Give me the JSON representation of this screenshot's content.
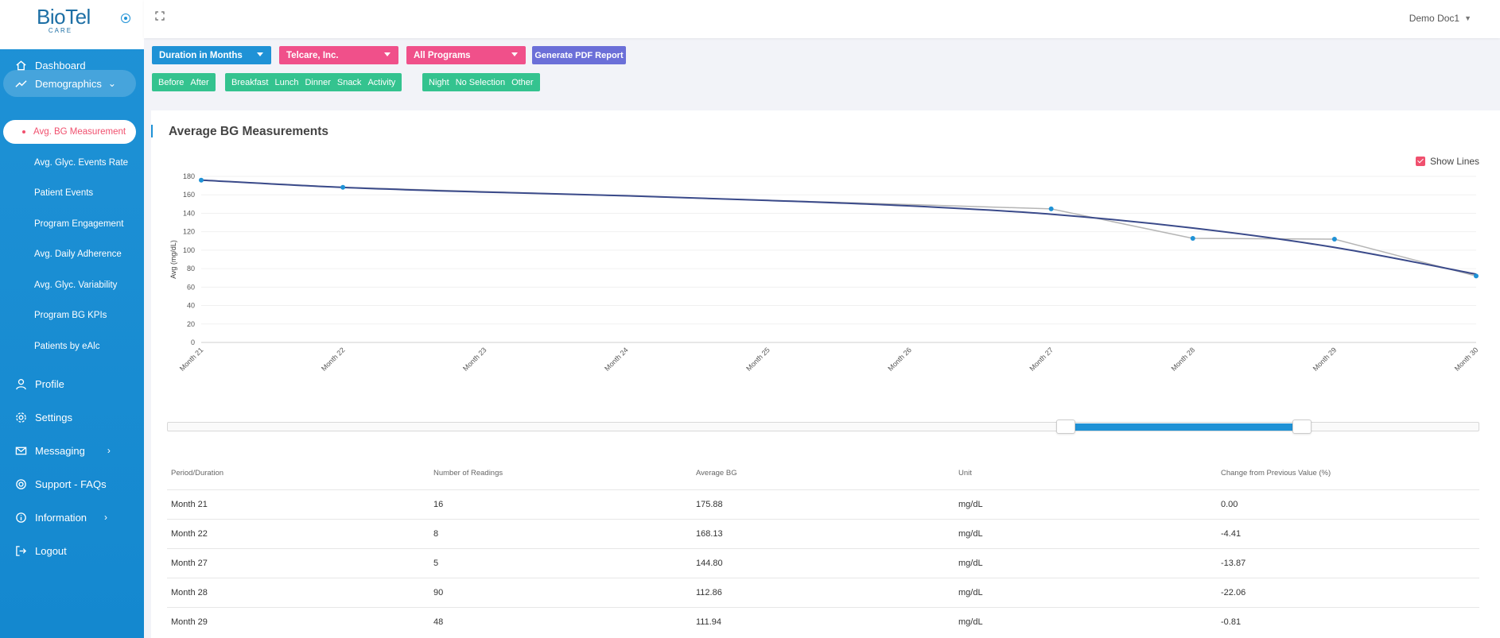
{
  "brand": {
    "name": "BioTel",
    "sub": "CARE"
  },
  "user": {
    "name": "Demo Doc1"
  },
  "sidebar": {
    "items": [
      {
        "label": "Dashboard",
        "icon": "home-icon"
      },
      {
        "label": "Demographics",
        "icon": "trend-line-icon"
      },
      {
        "label": "Profile",
        "icon": "user-icon"
      },
      {
        "label": "Settings",
        "icon": "gear-icon"
      },
      {
        "label": "Messaging",
        "icon": "mail-icon"
      },
      {
        "label": "Support - FAQs",
        "icon": "lifebuoy-icon"
      },
      {
        "label": "Information",
        "icon": "info-icon"
      },
      {
        "label": "Logout",
        "icon": "logout-icon"
      }
    ],
    "sub_items": [
      "Avg. BG Measurement",
      "Avg. Glyc. Events Rate",
      "Patient Events",
      "Program Engagement",
      "Avg. Daily Adherence",
      "Avg. Glyc. Variability",
      "Program BG KPIs",
      "Patients by eAlc"
    ]
  },
  "filters": {
    "duration": "Duration in Months",
    "company": "Telcare, Inc.",
    "programs": "All Programs",
    "pdf_button": "Generate PDF Report",
    "group1": [
      "Before",
      "After"
    ],
    "group2": [
      "Breakfast",
      "Lunch",
      "Dinner",
      "Snack",
      "Activity"
    ],
    "group3": [
      "Night",
      "No Selection",
      "Other"
    ]
  },
  "card": {
    "title": "Average BG Measurements",
    "show_lines_label": "Show Lines"
  },
  "chart_data": {
    "type": "line",
    "title": "",
    "ylabel": "Avg (mg/dL)",
    "xlabel": "",
    "ylim": [
      0,
      180
    ],
    "yticks": [
      0,
      20,
      40,
      60,
      80,
      100,
      120,
      140,
      160,
      180
    ],
    "categories": [
      "Month 21",
      "Month 22",
      "Month 23",
      "Month 24",
      "Month 25",
      "Month 26",
      "Month 27",
      "Month 28",
      "Month 29",
      "Month 30"
    ],
    "points": [
      {
        "x": "Month 21",
        "y": 175.88
      },
      {
        "x": "Month 22",
        "y": 168.13
      },
      {
        "x": "Month 27",
        "y": 144.8
      },
      {
        "x": "Month 28",
        "y": 112.86
      },
      {
        "x": "Month 29",
        "y": 111.94
      },
      {
        "x": "Month 30",
        "y": 72
      }
    ],
    "trend": [
      {
        "x": "Month 21",
        "y": 176
      },
      {
        "x": "Month 22",
        "y": 168
      },
      {
        "x": "Month 23",
        "y": 163
      },
      {
        "x": "Month 24",
        "y": 159
      },
      {
        "x": "Month 25",
        "y": 154
      },
      {
        "x": "Month 26",
        "y": 148
      },
      {
        "x": "Month 27",
        "y": 139
      },
      {
        "x": "Month 28",
        "y": 124
      },
      {
        "x": "Month 29",
        "y": 103
      },
      {
        "x": "Month 30",
        "y": 74
      }
    ],
    "colors": {
      "points_line": "#b5b5b5",
      "trend_line": "#3a4a8a",
      "marker": "#1f92d6"
    }
  },
  "slider": {
    "range_start": 0.685,
    "range_end": 0.865
  },
  "table": {
    "headers": [
      "Period/Duration",
      "Number of Readings",
      "Average BG",
      "Unit",
      "Change from Previous Value (%)"
    ],
    "rows": [
      [
        "Month 21",
        "16",
        "175.88",
        "mg/dL",
        "0.00"
      ],
      [
        "Month 22",
        "8",
        "168.13",
        "mg/dL",
        "-4.41"
      ],
      [
        "Month 27",
        "5",
        "144.80",
        "mg/dL",
        "-13.87"
      ],
      [
        "Month 28",
        "90",
        "112.86",
        "mg/dL",
        "-22.06"
      ],
      [
        "Month 29",
        "48",
        "111.94",
        "mg/dL",
        "-0.81"
      ]
    ]
  }
}
